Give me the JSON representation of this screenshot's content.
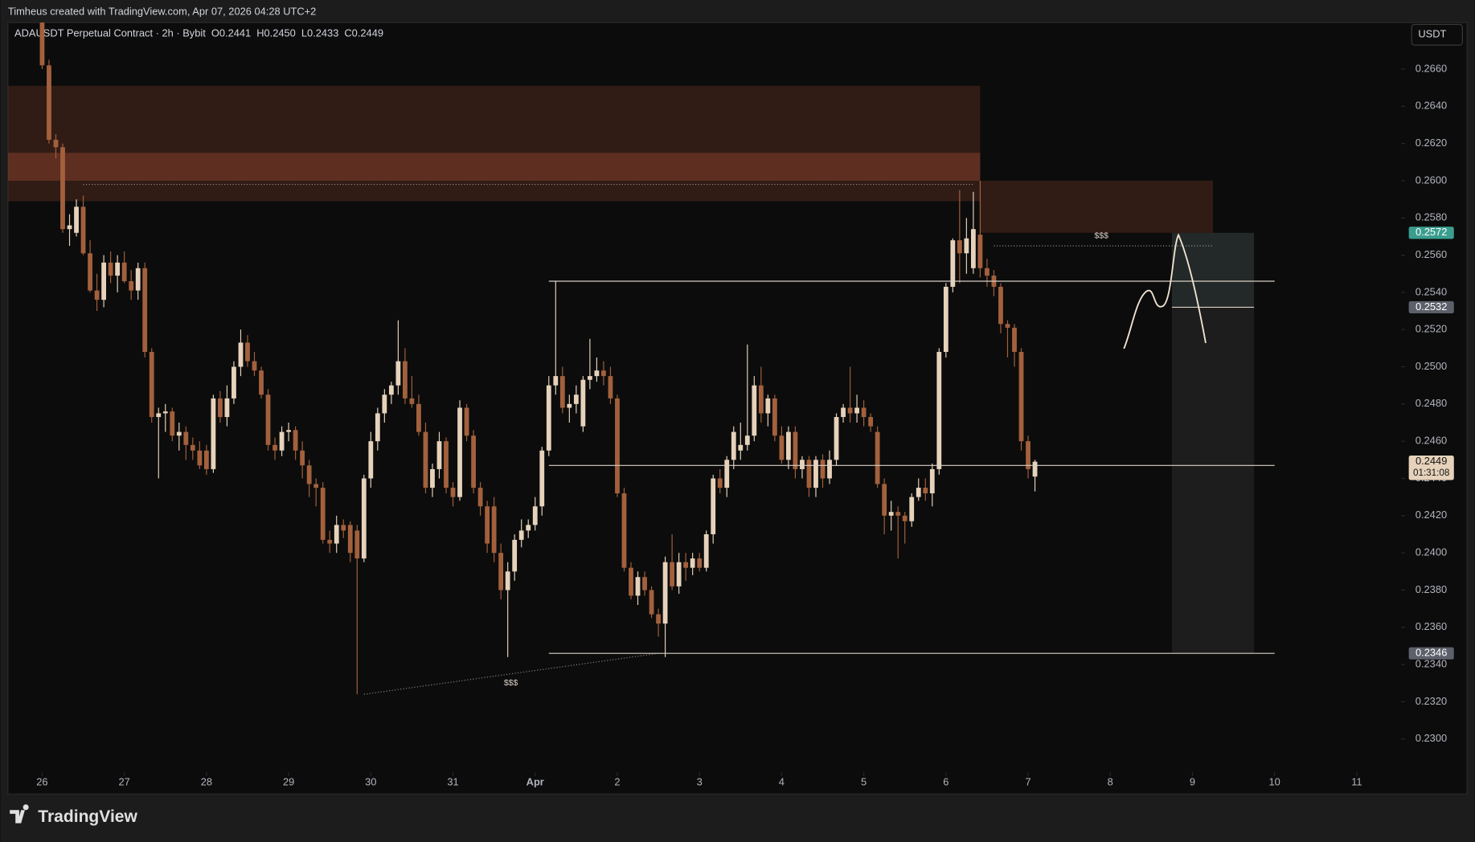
{
  "chart_data": {
    "type": "candlestick",
    "credit": "Timheus created with TradingView.com, Apr 07, 2026 04:28 UTC+2",
    "title": "ADAUSDT Perpetual Contract · 2h · Bybit",
    "ohlc_header": [
      {
        "label": "O",
        "value": "0.2441"
      },
      {
        "label": "H",
        "value": "0.2450"
      },
      {
        "label": "L",
        "value": "0.2433"
      },
      {
        "label": "C",
        "value": "0.2449"
      }
    ],
    "currency": "USDT",
    "brand": "TradingView",
    "up_color": "#e6d2bb",
    "down_color": "#a3603d",
    "xlim": [
      -10,
      397
    ],
    "ylim": [
      0.2283,
      0.2685
    ],
    "xticks": [
      {
        "value": 0,
        "label": "26"
      },
      {
        "value": 24,
        "label": "27"
      },
      {
        "value": 48,
        "label": "28"
      },
      {
        "value": 72,
        "label": "29"
      },
      {
        "value": 96,
        "label": "30"
      },
      {
        "value": 120,
        "label": "31"
      },
      {
        "value": 144,
        "label": "Apr"
      },
      {
        "value": 168,
        "label": "2"
      },
      {
        "value": 192,
        "label": "3"
      },
      {
        "value": 216,
        "label": "4"
      },
      {
        "value": 240,
        "label": "5"
      },
      {
        "value": 264,
        "label": "6"
      },
      {
        "value": 288,
        "label": "7"
      },
      {
        "value": 312,
        "label": "8"
      },
      {
        "value": 336,
        "label": "9"
      },
      {
        "value": 360,
        "label": "10"
      },
      {
        "value": 384,
        "label": "11"
      }
    ],
    "yticks": [
      {
        "value": 0.23,
        "label": "0.2300"
      },
      {
        "value": 0.232,
        "label": "0.2320"
      },
      {
        "value": 0.234,
        "label": "0.2340"
      },
      {
        "value": 0.236,
        "label": "0.2360"
      },
      {
        "value": 0.238,
        "label": "0.2380"
      },
      {
        "value": 0.24,
        "label": "0.2400"
      },
      {
        "value": 0.242,
        "label": "0.2420"
      },
      {
        "value": 0.244,
        "label": "0.2440"
      },
      {
        "value": 0.246,
        "label": "0.2460"
      },
      {
        "value": 0.248,
        "label": "0.2480"
      },
      {
        "value": 0.25,
        "label": "0.2500"
      },
      {
        "value": 0.252,
        "label": "0.2520"
      },
      {
        "value": 0.254,
        "label": "0.2540"
      },
      {
        "value": 0.256,
        "label": "0.2560"
      },
      {
        "value": 0.258,
        "label": "0.2580"
      },
      {
        "value": 0.26,
        "label": "0.2600"
      },
      {
        "value": 0.262,
        "label": "0.2620"
      },
      {
        "value": 0.264,
        "label": "0.2640"
      },
      {
        "value": 0.266,
        "label": "0.2660"
      }
    ],
    "x": [
      0,
      2,
      4,
      6,
      8,
      10,
      12,
      14,
      16,
      18,
      20,
      22,
      24,
      26,
      28,
      30,
      32,
      34,
      36,
      38,
      40,
      42,
      44,
      46,
      48,
      50,
      52,
      54,
      56,
      58,
      60,
      62,
      64,
      66,
      68,
      70,
      72,
      74,
      76,
      78,
      80,
      82,
      84,
      86,
      88,
      90,
      92,
      94,
      96,
      98,
      100,
      102,
      104,
      106,
      108,
      110,
      112,
      114,
      116,
      118,
      120,
      122,
      124,
      126,
      128,
      130,
      132,
      134,
      136,
      138,
      140,
      142,
      144,
      146,
      148,
      150,
      152,
      154,
      156,
      158,
      160,
      162,
      164,
      166,
      168,
      170,
      172,
      174,
      176,
      178,
      180,
      182,
      184,
      186,
      188,
      190,
      192,
      194,
      196,
      198,
      200,
      202,
      204,
      206,
      208,
      210,
      212,
      214,
      216,
      218,
      220,
      222,
      224,
      226,
      228,
      230,
      232,
      234,
      236,
      238,
      240,
      242,
      244,
      246,
      248,
      250,
      252,
      254,
      256,
      258,
      260,
      262,
      264,
      266,
      268,
      270,
      272,
      274,
      276,
      278,
      280,
      282,
      284,
      286,
      288,
      290
    ],
    "candles": [
      [
        0.269,
        0.2695,
        0.266,
        0.2662
      ],
      [
        0.2662,
        0.2665,
        0.262,
        0.2622
      ],
      [
        0.2622,
        0.2625,
        0.2612,
        0.2618
      ],
      [
        0.2618,
        0.262,
        0.2572,
        0.2574
      ],
      [
        0.2574,
        0.2582,
        0.2565,
        0.2576
      ],
      [
        0.2572,
        0.259,
        0.257,
        0.2586
      ],
      [
        0.2586,
        0.2592,
        0.256,
        0.2561
      ],
      [
        0.2561,
        0.2568,
        0.254,
        0.2541
      ],
      [
        0.2541,
        0.255,
        0.253,
        0.2536
      ],
      [
        0.2536,
        0.256,
        0.2532,
        0.2556
      ],
      [
        0.2556,
        0.2562,
        0.2545,
        0.2549
      ],
      [
        0.2549,
        0.256,
        0.254,
        0.2556
      ],
      [
        0.2556,
        0.2562,
        0.2545,
        0.2546
      ],
      [
        0.2546,
        0.2552,
        0.2536,
        0.2541
      ],
      [
        0.2541,
        0.2556,
        0.2536,
        0.2553
      ],
      [
        0.2553,
        0.2556,
        0.2505,
        0.2508
      ],
      [
        0.2508,
        0.251,
        0.247,
        0.2473
      ],
      [
        0.2473,
        0.2478,
        0.244,
        0.2475
      ],
      [
        0.2475,
        0.248,
        0.2465,
        0.2476
      ],
      [
        0.2476,
        0.2478,
        0.246,
        0.2463
      ],
      [
        0.2463,
        0.247,
        0.2455,
        0.2465
      ],
      [
        0.2465,
        0.2468,
        0.245,
        0.2458
      ],
      [
        0.2458,
        0.2462,
        0.245,
        0.2455
      ],
      [
        0.2455,
        0.246,
        0.2445,
        0.2447
      ],
      [
        0.2455,
        0.2458,
        0.2442,
        0.2445
      ],
      [
        0.2445,
        0.2485,
        0.2443,
        0.2483
      ],
      [
        0.2483,
        0.2487,
        0.247,
        0.2473
      ],
      [
        0.2473,
        0.249,
        0.2468,
        0.2483
      ],
      [
        0.2483,
        0.2503,
        0.248,
        0.25
      ],
      [
        0.25,
        0.252,
        0.2495,
        0.2513
      ],
      [
        0.2513,
        0.2517,
        0.25,
        0.2503
      ],
      [
        0.2503,
        0.2508,
        0.2495,
        0.2498
      ],
      [
        0.2498,
        0.25,
        0.2483,
        0.2485
      ],
      [
        0.2485,
        0.2488,
        0.2455,
        0.2458
      ],
      [
        0.2458,
        0.2462,
        0.245,
        0.2455
      ],
      [
        0.2455,
        0.2468,
        0.2452,
        0.2465
      ],
      [
        0.2465,
        0.247,
        0.246,
        0.2466
      ],
      [
        0.2466,
        0.2468,
        0.245,
        0.2455
      ],
      [
        0.2455,
        0.246,
        0.244,
        0.2447
      ],
      [
        0.2447,
        0.245,
        0.243,
        0.2437
      ],
      [
        0.2437,
        0.244,
        0.2425,
        0.2435
      ],
      [
        0.2435,
        0.2438,
        0.2405,
        0.2407
      ],
      [
        0.2407,
        0.2412,
        0.24,
        0.2405
      ],
      [
        0.2405,
        0.242,
        0.24,
        0.2415
      ],
      [
        0.2415,
        0.2418,
        0.2408,
        0.2412
      ],
      [
        0.2415,
        0.2417,
        0.2395,
        0.24
      ],
      [
        0.2412,
        0.2415,
        0.2324,
        0.2397
      ],
      [
        0.2397,
        0.2442,
        0.2395,
        0.244
      ],
      [
        0.244,
        0.2465,
        0.2435,
        0.246
      ],
      [
        0.246,
        0.2478,
        0.2455,
        0.2475
      ],
      [
        0.2475,
        0.2488,
        0.247,
        0.2485
      ],
      [
        0.2485,
        0.2492,
        0.248,
        0.249
      ],
      [
        0.249,
        0.2525,
        0.2485,
        0.2503
      ],
      [
        0.2503,
        0.251,
        0.248,
        0.2483
      ],
      [
        0.2483,
        0.2495,
        0.2478,
        0.248
      ],
      [
        0.248,
        0.2485,
        0.2463,
        0.2465
      ],
      [
        0.2465,
        0.247,
        0.2432,
        0.2435
      ],
      [
        0.2435,
        0.2448,
        0.243,
        0.2445
      ],
      [
        0.2445,
        0.2465,
        0.244,
        0.246
      ],
      [
        0.246,
        0.2462,
        0.2432,
        0.2435
      ],
      [
        0.2435,
        0.2438,
        0.2425,
        0.243
      ],
      [
        0.243,
        0.2482,
        0.2428,
        0.2478
      ],
      [
        0.2478,
        0.248,
        0.246,
        0.2463
      ],
      [
        0.2463,
        0.2466,
        0.2432,
        0.2435
      ],
      [
        0.2435,
        0.2438,
        0.242,
        0.2425
      ],
      [
        0.2425,
        0.2428,
        0.24,
        0.2405
      ],
      [
        0.2425,
        0.243,
        0.2395,
        0.24
      ],
      [
        0.24,
        0.2405,
        0.2375,
        0.238
      ],
      [
        0.238,
        0.2395,
        0.2344,
        0.239
      ],
      [
        0.239,
        0.241,
        0.2385,
        0.2407
      ],
      [
        0.2407,
        0.2418,
        0.2403,
        0.2412
      ],
      [
        0.2412,
        0.2418,
        0.2408,
        0.2415
      ],
      [
        0.2415,
        0.243,
        0.2412,
        0.2425
      ],
      [
        0.2425,
        0.2457,
        0.242,
        0.2455
      ],
      [
        0.2455,
        0.2495,
        0.2452,
        0.249
      ],
      [
        0.249,
        0.2546,
        0.2485,
        0.2495
      ],
      [
        0.2495,
        0.25,
        0.2475,
        0.2478
      ],
      [
        0.2478,
        0.2485,
        0.247,
        0.248
      ],
      [
        0.248,
        0.249,
        0.2475,
        0.2485
      ],
      [
        0.2468,
        0.2495,
        0.2465,
        0.2493
      ],
      [
        0.2493,
        0.2515,
        0.2488,
        0.2495
      ],
      [
        0.2495,
        0.2505,
        0.2492,
        0.2498
      ],
      [
        0.2498,
        0.2503,
        0.249,
        0.2495
      ],
      [
        0.2495,
        0.25,
        0.248,
        0.2483
      ],
      [
        0.2483,
        0.2485,
        0.243,
        0.2432
      ],
      [
        0.2432,
        0.2435,
        0.239,
        0.2392
      ],
      [
        0.2392,
        0.2395,
        0.2375,
        0.2377
      ],
      [
        0.2377,
        0.239,
        0.2372,
        0.2387
      ],
      [
        0.2387,
        0.239,
        0.2377,
        0.238
      ],
      [
        0.238,
        0.2382,
        0.2365,
        0.2367
      ],
      [
        0.2367,
        0.237,
        0.2355,
        0.2362
      ],
      [
        0.2362,
        0.2398,
        0.2344,
        0.2395
      ],
      [
        0.2395,
        0.241,
        0.238,
        0.2382
      ],
      [
        0.2382,
        0.24,
        0.2378,
        0.2395
      ],
      [
        0.2395,
        0.24,
        0.2385,
        0.2392
      ],
      [
        0.2392,
        0.24,
        0.2388,
        0.2397
      ],
      [
        0.2397,
        0.24,
        0.239,
        0.2392
      ],
      [
        0.2392,
        0.2412,
        0.239,
        0.241
      ],
      [
        0.241,
        0.2442,
        0.2405,
        0.244
      ],
      [
        0.244,
        0.2445,
        0.2432,
        0.2435
      ],
      [
        0.2435,
        0.2452,
        0.243,
        0.245
      ],
      [
        0.245,
        0.2468,
        0.2445,
        0.2465
      ],
      [
        0.2455,
        0.247,
        0.245,
        0.2458
      ],
      [
        0.2458,
        0.2512,
        0.2455,
        0.2463
      ],
      [
        0.2463,
        0.2495,
        0.246,
        0.249
      ],
      [
        0.249,
        0.25,
        0.247,
        0.2475
      ],
      [
        0.2475,
        0.2485,
        0.2468,
        0.2483
      ],
      [
        0.2483,
        0.2485,
        0.246,
        0.2463
      ],
      [
        0.2463,
        0.2468,
        0.2448,
        0.245
      ],
      [
        0.245,
        0.2468,
        0.2445,
        0.2465
      ],
      [
        0.2465,
        0.2468,
        0.244,
        0.2445
      ],
      [
        0.2445,
        0.2452,
        0.244,
        0.245
      ],
      [
        0.245,
        0.2452,
        0.243,
        0.2435
      ],
      [
        0.2435,
        0.2452,
        0.243,
        0.245
      ],
      [
        0.245,
        0.2453,
        0.2435,
        0.244
      ],
      [
        0.244,
        0.2455,
        0.2437,
        0.245
      ],
      [
        0.245,
        0.2475,
        0.2447,
        0.2473
      ],
      [
        0.2473,
        0.248,
        0.247,
        0.2478
      ],
      [
        0.2478,
        0.25,
        0.247,
        0.2475
      ],
      [
        0.2475,
        0.2485,
        0.247,
        0.2478
      ],
      [
        0.2478,
        0.2482,
        0.2468,
        0.2473
      ],
      [
        0.2473,
        0.2475,
        0.2465,
        0.2468
      ],
      [
        0.2465,
        0.2468,
        0.2435,
        0.2437
      ],
      [
        0.2437,
        0.244,
        0.241,
        0.242
      ],
      [
        0.242,
        0.2428,
        0.2412,
        0.2422
      ],
      [
        0.2422,
        0.2425,
        0.2397,
        0.242
      ],
      [
        0.242,
        0.2422,
        0.2405,
        0.2417
      ],
      [
        0.2417,
        0.2432,
        0.2414,
        0.243
      ],
      [
        0.243,
        0.244,
        0.2428,
        0.2435
      ],
      [
        0.2435,
        0.244,
        0.2428,
        0.2432
      ],
      [
        0.2432,
        0.2448,
        0.2425,
        0.2445
      ],
      [
        0.2445,
        0.251,
        0.2442,
        0.2508
      ],
      [
        0.2508,
        0.2545,
        0.2505,
        0.2543
      ],
      [
        0.2543,
        0.2569,
        0.254,
        0.2568
      ],
      [
        0.2568,
        0.2595,
        0.2545,
        0.2561
      ],
      [
        0.2561,
        0.258,
        0.255,
        0.2569
      ],
      [
        0.2553,
        0.2594,
        0.255,
        0.2574
      ],
      [
        0.2571,
        0.26,
        0.2548,
        0.2553
      ],
      [
        0.2553,
        0.2558,
        0.2543,
        0.2549
      ],
      [
        0.2549,
        0.2552,
        0.2538,
        0.2543
      ],
      [
        0.2543,
        0.2545,
        0.2518,
        0.2523
      ],
      [
        0.2523,
        0.2525,
        0.2505,
        0.2521
      ],
      [
        0.2521,
        0.2523,
        0.25,
        0.2508
      ],
      [
        0.2508,
        0.251,
        0.2455,
        0.246
      ],
      [
        0.246,
        0.2463,
        0.244,
        0.2445
      ],
      [
        0.2441,
        0.245,
        0.2433,
        0.2449
      ]
    ],
    "zones": [
      {
        "x": [
          -10,
          274
        ],
        "y": [
          0.2589,
          0.2651
        ],
        "color": "rgba(95,48,34,0.45)"
      },
      {
        "x": [
          -10,
          274
        ],
        "y": [
          0.26,
          0.2615
        ],
        "color": "rgba(150,70,48,0.45)"
      },
      {
        "x": [
          274,
          342
        ],
        "y": [
          0.2572,
          0.26
        ],
        "color": "rgba(95,48,34,0.45)"
      },
      {
        "x": [
          330,
          354
        ],
        "y": [
          0.2346,
          0.2572
        ],
        "color": "rgba(255,255,255,0.07)"
      },
      {
        "x": [
          330,
          354
        ],
        "y": [
          0.2532,
          0.2572
        ],
        "color": "rgba(90,140,140,0.10)"
      }
    ],
    "levels": [
      {
        "y": 0.2546,
        "x": [
          148,
          360
        ],
        "style": "solid"
      },
      {
        "y": 0.2447,
        "x": [
          148,
          360
        ],
        "style": "solid"
      },
      {
        "y": 0.2346,
        "x": [
          148,
          360
        ],
        "style": "solid"
      },
      {
        "y": 0.2532,
        "x": [
          330,
          354
        ],
        "style": "solid"
      },
      {
        "y": 0.2598,
        "x": [
          12,
          272
        ],
        "style": "dotted"
      },
      {
        "y": 0.2565,
        "x": [
          278,
          342
        ],
        "style": "dotted"
      }
    ],
    "trendlines": [
      {
        "x": [
          94,
          180
        ],
        "y": [
          0.2324,
          0.2346
        ],
        "style": "dotted"
      }
    ],
    "annotations": [
      "$$$",
      "$$$"
    ],
    "price_tags": [
      {
        "value": 0.2572,
        "color": "#3a9d8e",
        "text_color": "#ffffff"
      },
      {
        "value": 0.2532,
        "color": "#5d606b",
        "text_color": "#ffffff"
      },
      {
        "value": 0.2449,
        "countdown": "01:31:08",
        "color": "#e6d2bb",
        "text_color": "#131313"
      },
      {
        "value": 0.2346,
        "color": "#5d606b",
        "text_color": "#ffffff"
      }
    ]
  }
}
